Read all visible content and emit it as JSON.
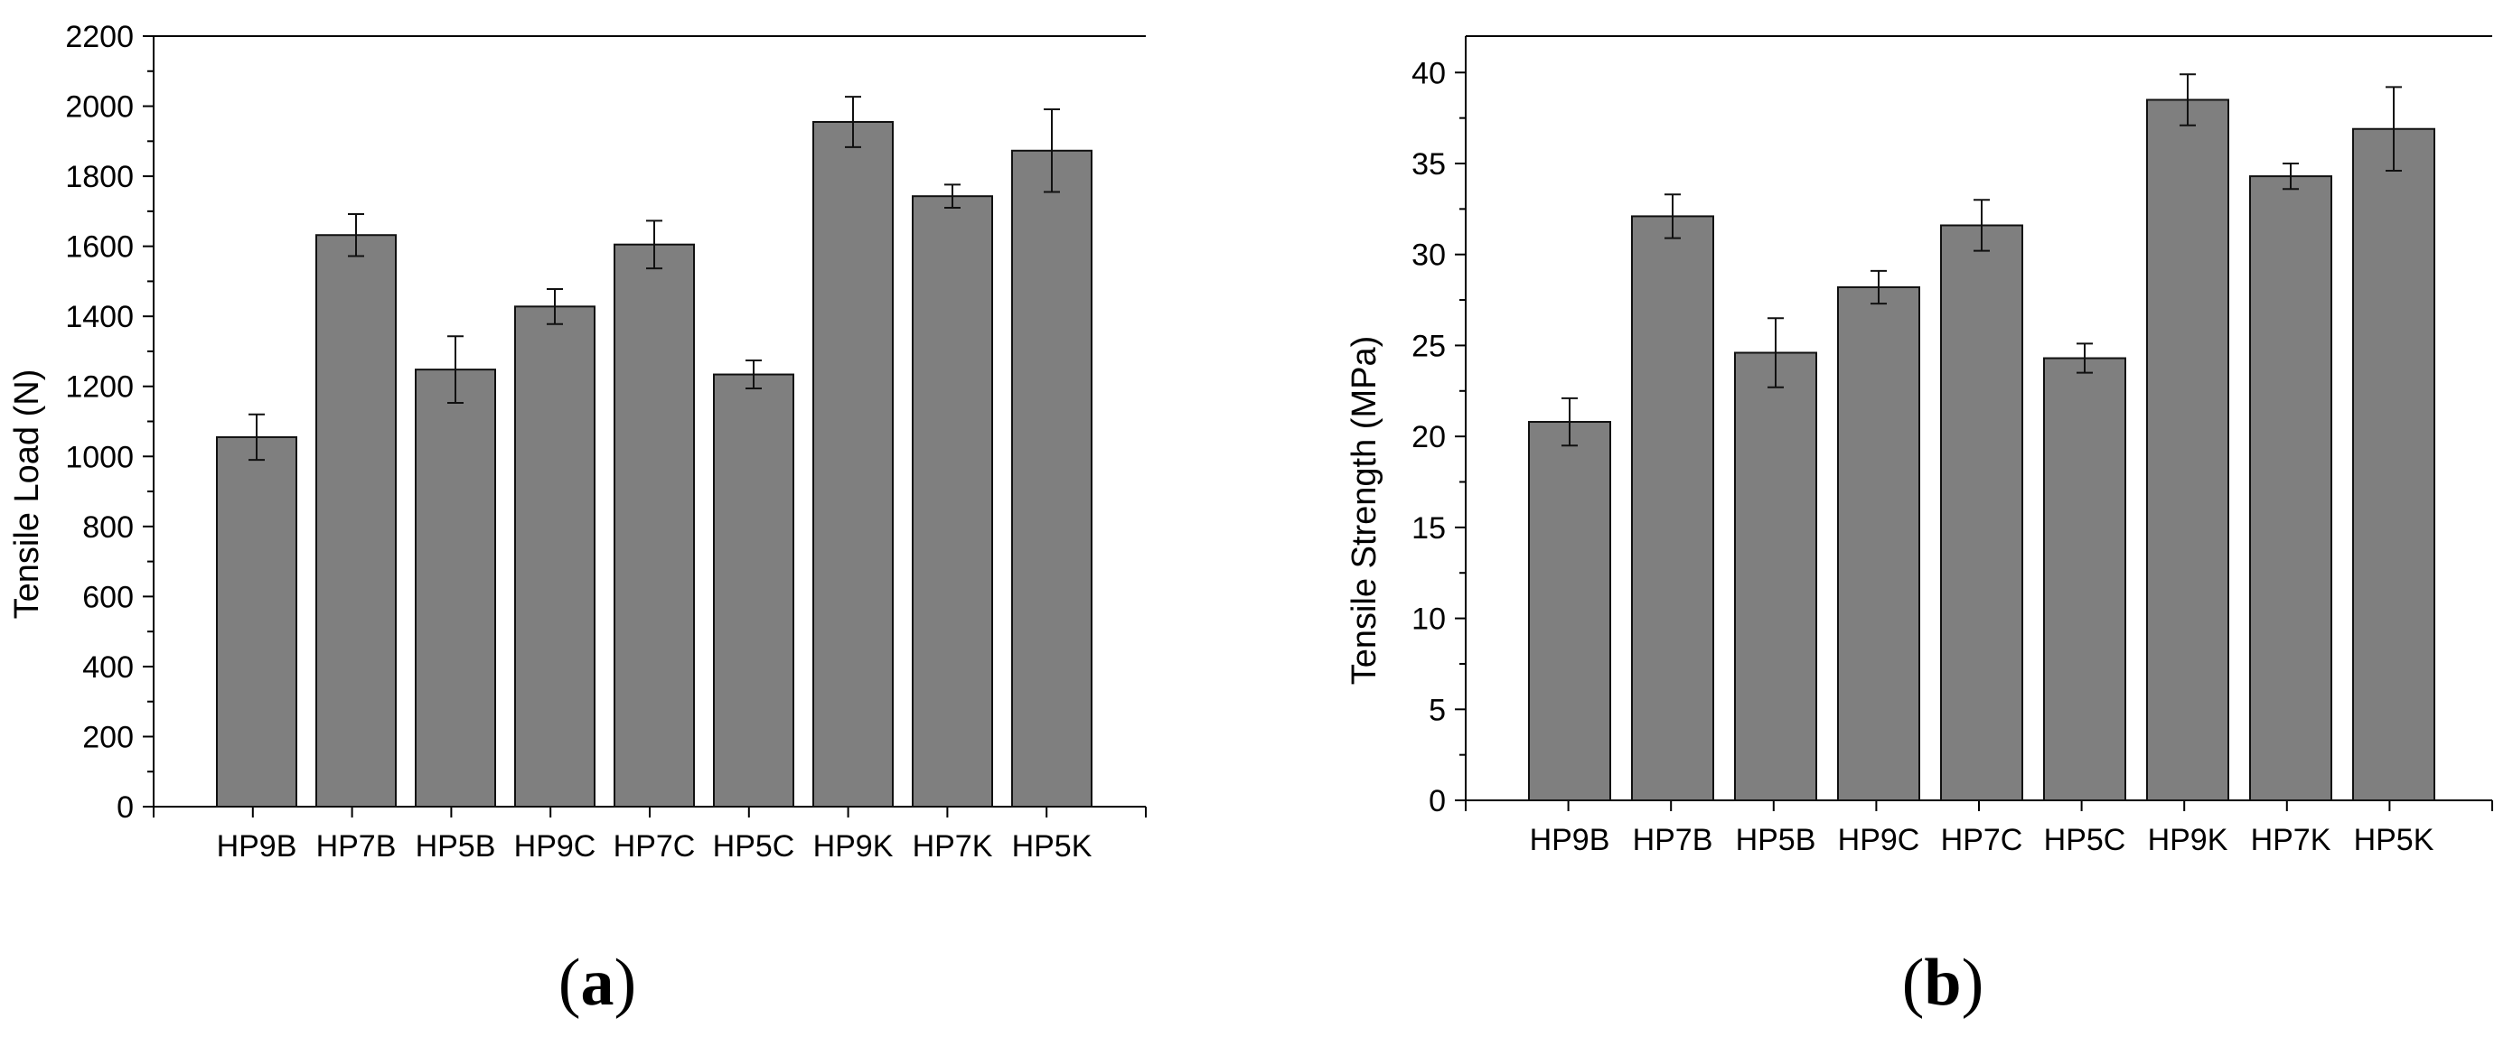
{
  "chart_data": [
    {
      "type": "bar",
      "panel_label": "a",
      "categories": [
        "HP9B",
        "HP7B",
        "HP5B",
        "HP9C",
        "HP7C",
        "HP5C",
        "HP9K",
        "HP7K",
        "HP5K"
      ],
      "values": [
        1055,
        1632,
        1248,
        1428,
        1605,
        1234,
        1955,
        1743,
        1873
      ],
      "errors": [
        65,
        60,
        95,
        50,
        68,
        40,
        72,
        33,
        118
      ],
      "ylabel": "Tensile Load (N)",
      "ylim": [
        0,
        2200
      ],
      "yticks": [
        "0",
        "200",
        "400",
        "600",
        "800",
        "1000",
        "1200",
        "1400",
        "1600",
        "1800",
        "2000",
        "2200"
      ],
      "bar_color": "#7f7f7f",
      "grid": false
    },
    {
      "type": "bar",
      "panel_label": "b",
      "categories": [
        "HP9B",
        "HP7B",
        "HP5B",
        "HP9C",
        "HP7C",
        "HP5C",
        "HP9K",
        "HP7K",
        "HP5K"
      ],
      "values": [
        20.8,
        32.1,
        24.6,
        28.2,
        31.6,
        24.3,
        38.5,
        34.3,
        36.9
      ],
      "errors": [
        1.3,
        1.2,
        1.9,
        0.9,
        1.4,
        0.8,
        1.4,
        0.7,
        2.3
      ],
      "ylabel": "Tensile Strength (MPa)",
      "ylim": [
        0,
        42
      ],
      "yticks": [
        "0",
        "5",
        "10",
        "15",
        "20",
        "25",
        "30",
        "35",
        "40"
      ],
      "bar_color": "#7f7f7f",
      "grid": false
    }
  ]
}
